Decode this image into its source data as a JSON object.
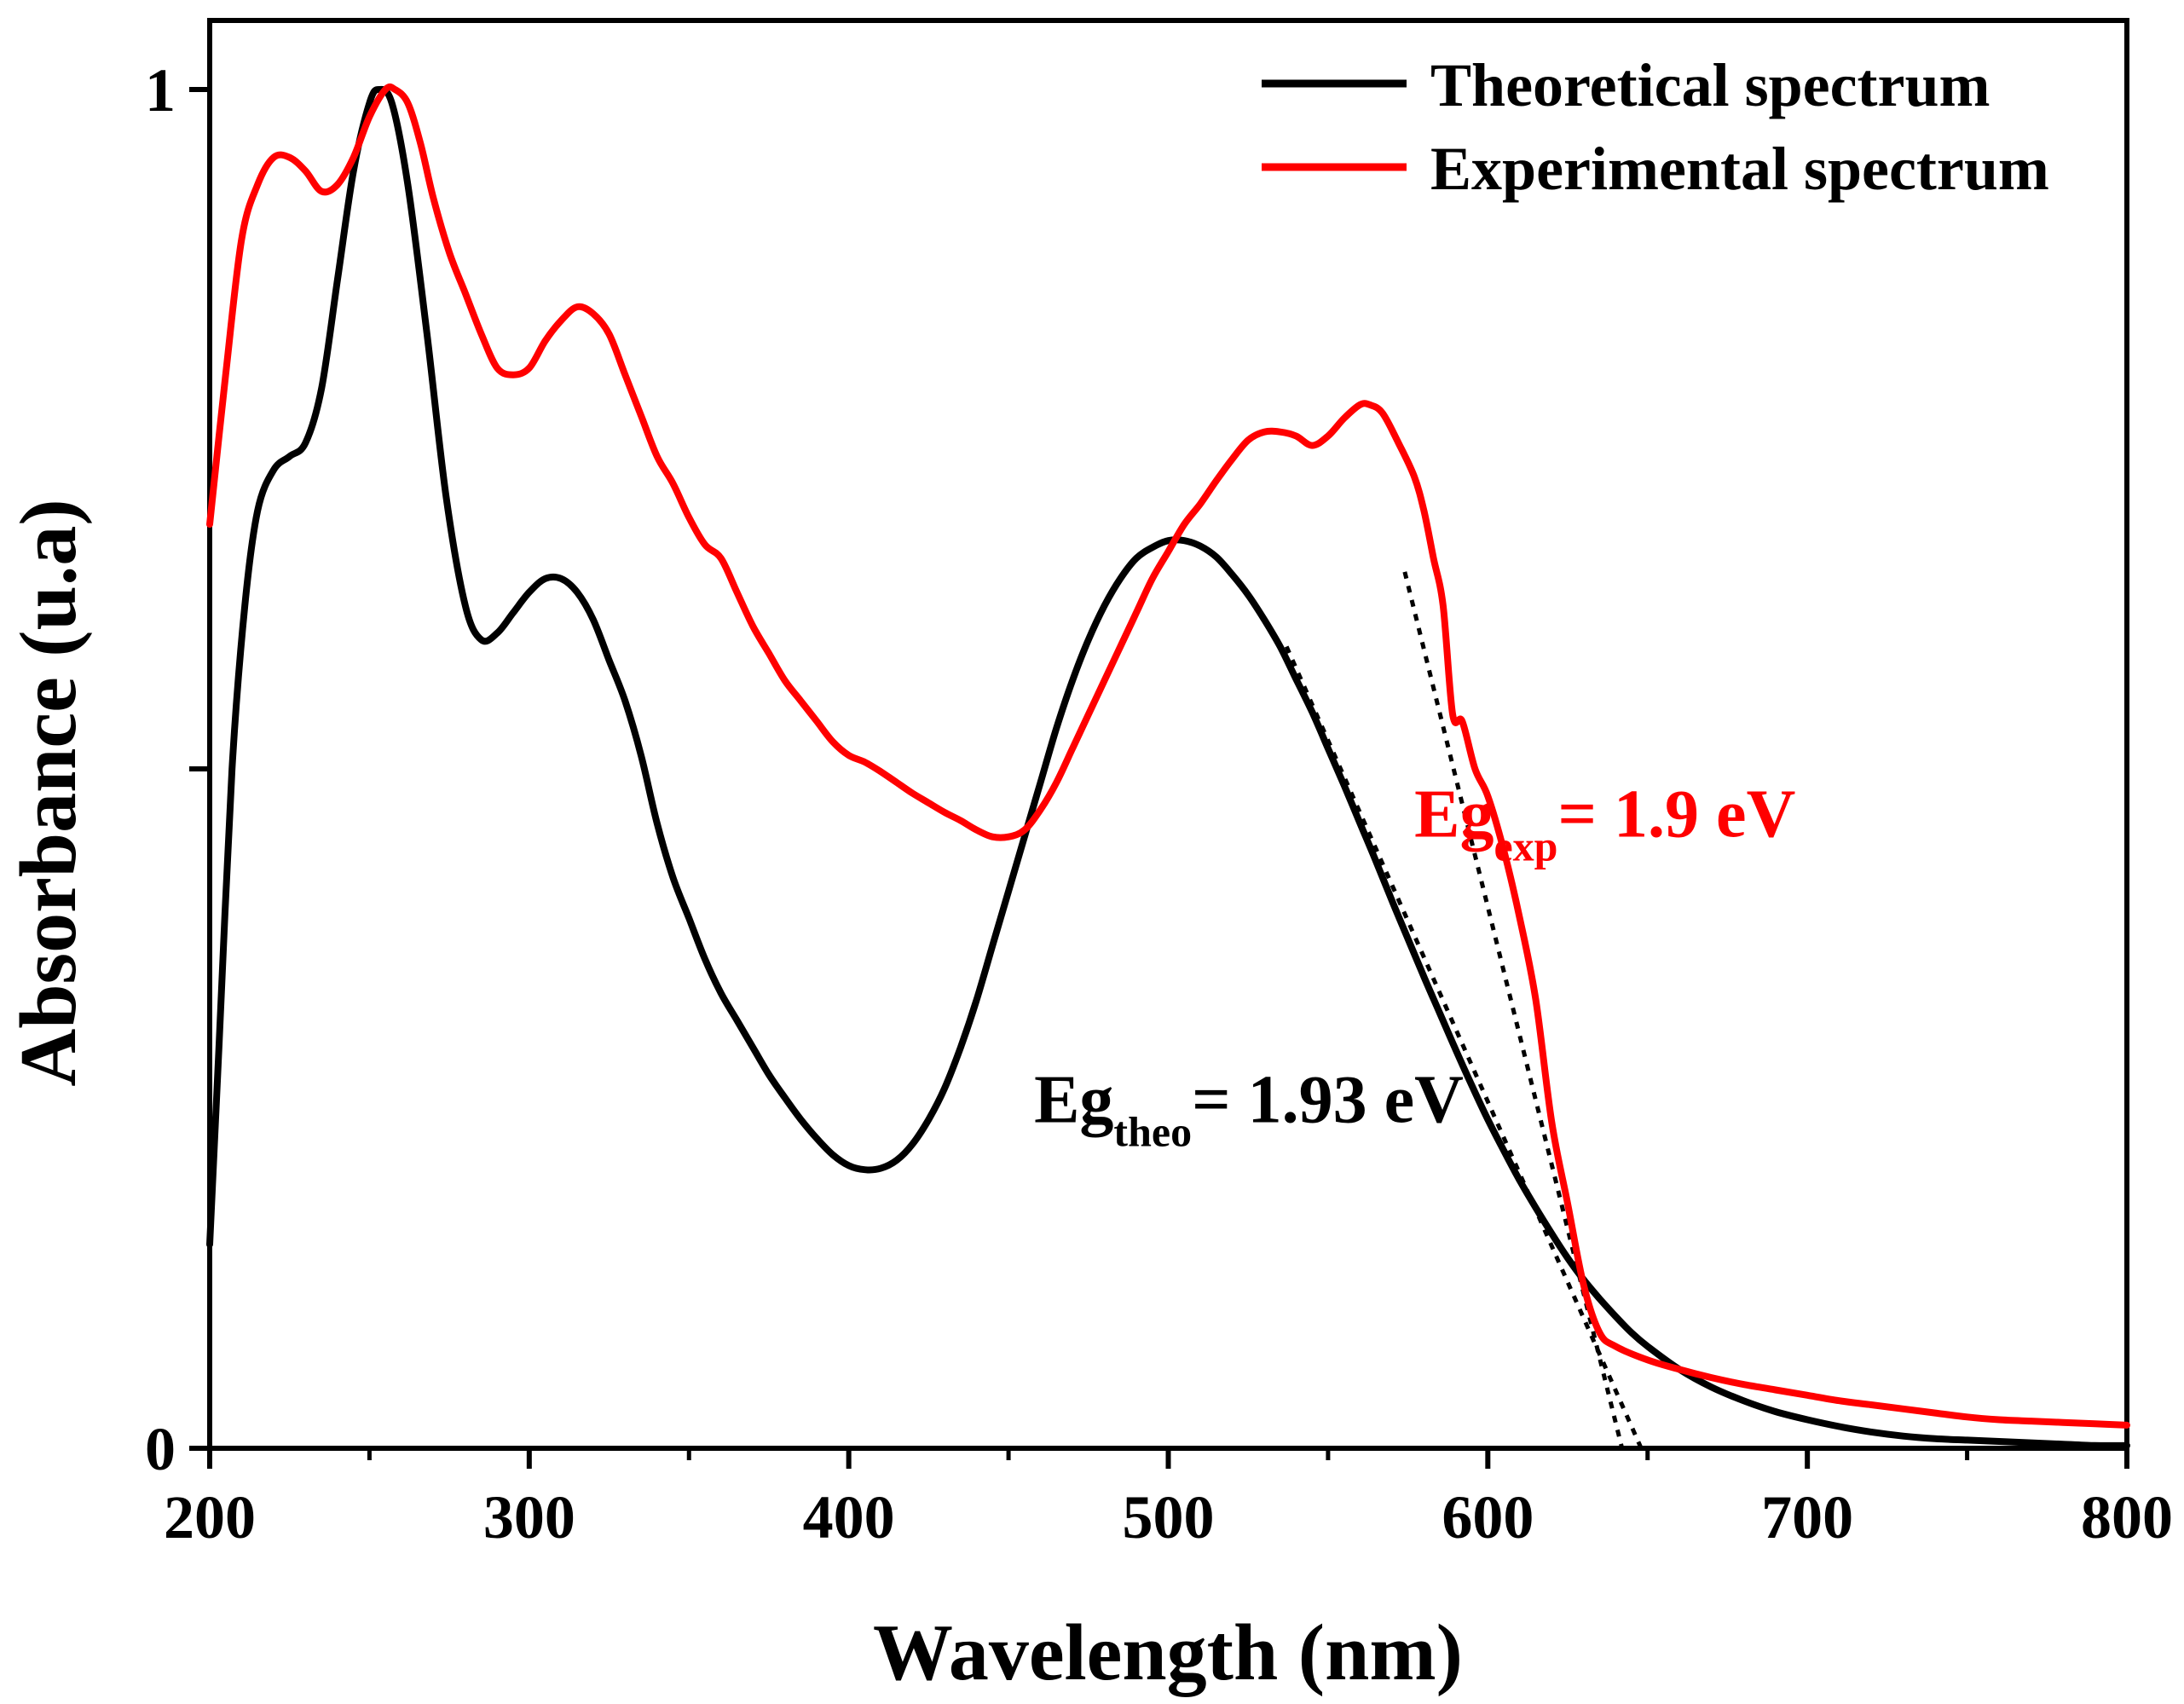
{
  "chart_data": {
    "type": "line",
    "title": "",
    "xlabel": "Wavelength (nm)",
    "ylabel": "Absorbance (u.a)",
    "xlim": [
      200,
      800
    ],
    "ylim": [
      0,
      1
    ],
    "x_ticks": [
      200,
      300,
      400,
      500,
      600,
      700,
      800
    ],
    "y_ticks": [
      0,
      0.5,
      1
    ],
    "y_tick_labels": [
      "0",
      "",
      "1"
    ],
    "grid": false,
    "legend_position": "top-right",
    "series": [
      {
        "name": "Theoretical spectrum",
        "color": "#000000",
        "points": [
          [
            200,
            0.15
          ],
          [
            203,
            0.3
          ],
          [
            207,
            0.5
          ],
          [
            211,
            0.62
          ],
          [
            215,
            0.69
          ],
          [
            220,
            0.72
          ],
          [
            225,
            0.73
          ],
          [
            230,
            0.74
          ],
          [
            235,
            0.78
          ],
          [
            240,
            0.86
          ],
          [
            245,
            0.94
          ],
          [
            250,
            0.99
          ],
          [
            253,
            1.0
          ],
          [
            257,
            0.99
          ],
          [
            262,
            0.93
          ],
          [
            268,
            0.82
          ],
          [
            274,
            0.7
          ],
          [
            280,
            0.62
          ],
          [
            285,
            0.595
          ],
          [
            290,
            0.6
          ],
          [
            295,
            0.615
          ],
          [
            300,
            0.63
          ],
          [
            305,
            0.64
          ],
          [
            310,
            0.64
          ],
          [
            315,
            0.63
          ],
          [
            320,
            0.61
          ],
          [
            325,
            0.58
          ],
          [
            330,
            0.55
          ],
          [
            335,
            0.51
          ],
          [
            340,
            0.46
          ],
          [
            345,
            0.42
          ],
          [
            350,
            0.39
          ],
          [
            355,
            0.36
          ],
          [
            360,
            0.335
          ],
          [
            365,
            0.315
          ],
          [
            370,
            0.295
          ],
          [
            375,
            0.275
          ],
          [
            380,
            0.258
          ],
          [
            385,
            0.242
          ],
          [
            390,
            0.228
          ],
          [
            395,
            0.216
          ],
          [
            400,
            0.208
          ],
          [
            405,
            0.205
          ],
          [
            410,
            0.206
          ],
          [
            415,
            0.212
          ],
          [
            420,
            0.224
          ],
          [
            425,
            0.242
          ],
          [
            430,
            0.265
          ],
          [
            435,
            0.295
          ],
          [
            440,
            0.33
          ],
          [
            445,
            0.37
          ],
          [
            450,
            0.41
          ],
          [
            455,
            0.45
          ],
          [
            460,
            0.49
          ],
          [
            465,
            0.53
          ],
          [
            470,
            0.565
          ],
          [
            475,
            0.595
          ],
          [
            480,
            0.62
          ],
          [
            485,
            0.64
          ],
          [
            490,
            0.655
          ],
          [
            495,
            0.663
          ],
          [
            500,
            0.668
          ],
          [
            505,
            0.668
          ],
          [
            510,
            0.664
          ],
          [
            515,
            0.656
          ],
          [
            520,
            0.643
          ],
          [
            525,
            0.628
          ],
          [
            530,
            0.61
          ],
          [
            535,
            0.59
          ],
          [
            540,
            0.566
          ],
          [
            545,
            0.542
          ],
          [
            550,
            0.515
          ],
          [
            555,
            0.488
          ],
          [
            560,
            0.46
          ],
          [
            565,
            0.432
          ],
          [
            570,
            0.403
          ],
          [
            575,
            0.375
          ],
          [
            580,
            0.347
          ],
          [
            585,
            0.32
          ],
          [
            590,
            0.293
          ],
          [
            595,
            0.267
          ],
          [
            600,
            0.242
          ],
          [
            605,
            0.219
          ],
          [
            610,
            0.197
          ],
          [
            615,
            0.177
          ],
          [
            620,
            0.158
          ],
          [
            625,
            0.14
          ],
          [
            630,
            0.124
          ],
          [
            635,
            0.11
          ],
          [
            640,
            0.097
          ],
          [
            645,
            0.085
          ],
          [
            650,
            0.075
          ],
          [
            660,
            0.058
          ],
          [
            670,
            0.045
          ],
          [
            680,
            0.035
          ],
          [
            690,
            0.027
          ],
          [
            700,
            0.021
          ],
          [
            710,
            0.016
          ],
          [
            720,
            0.012
          ],
          [
            730,
            0.009
          ],
          [
            740,
            0.007
          ],
          [
            750,
            0.006
          ],
          [
            760,
            0.005
          ],
          [
            770,
            0.004
          ],
          [
            780,
            0.003
          ],
          [
            790,
            0.002
          ],
          [
            800,
            0.002
          ]
        ]
      },
      {
        "name": "Experimental spectrum",
        "color": "#ff0000",
        "points": [
          [
            200,
            0.68
          ],
          [
            205,
            0.79
          ],
          [
            210,
            0.89
          ],
          [
            215,
            0.93
          ],
          [
            220,
            0.95
          ],
          [
            225,
            0.95
          ],
          [
            230,
            0.94
          ],
          [
            235,
            0.925
          ],
          [
            240,
            0.93
          ],
          [
            245,
            0.95
          ],
          [
            250,
            0.98
          ],
          [
            255,
            1.0
          ],
          [
            258,
            1.0
          ],
          [
            262,
            0.99
          ],
          [
            266,
            0.96
          ],
          [
            270,
            0.92
          ],
          [
            275,
            0.88
          ],
          [
            280,
            0.85
          ],
          [
            285,
            0.82
          ],
          [
            290,
            0.795
          ],
          [
            295,
            0.79
          ],
          [
            300,
            0.795
          ],
          [
            305,
            0.815
          ],
          [
            310,
            0.83
          ],
          [
            315,
            0.84
          ],
          [
            320,
            0.835
          ],
          [
            325,
            0.82
          ],
          [
            330,
            0.79
          ],
          [
            335,
            0.76
          ],
          [
            340,
            0.73
          ],
          [
            345,
            0.71
          ],
          [
            350,
            0.685
          ],
          [
            355,
            0.665
          ],
          [
            360,
            0.655
          ],
          [
            365,
            0.63
          ],
          [
            370,
            0.605
          ],
          [
            375,
            0.585
          ],
          [
            380,
            0.565
          ],
          [
            385,
            0.55
          ],
          [
            390,
            0.535
          ],
          [
            395,
            0.52
          ],
          [
            400,
            0.51
          ],
          [
            405,
            0.505
          ],
          [
            410,
            0.498
          ],
          [
            415,
            0.49
          ],
          [
            420,
            0.482
          ],
          [
            425,
            0.475
          ],
          [
            430,
            0.468
          ],
          [
            435,
            0.462
          ],
          [
            440,
            0.455
          ],
          [
            445,
            0.45
          ],
          [
            450,
            0.45
          ],
          [
            455,
            0.455
          ],
          [
            460,
            0.47
          ],
          [
            465,
            0.49
          ],
          [
            470,
            0.515
          ],
          [
            475,
            0.54
          ],
          [
            480,
            0.565
          ],
          [
            485,
            0.59
          ],
          [
            490,
            0.615
          ],
          [
            495,
            0.64
          ],
          [
            500,
            0.66
          ],
          [
            505,
            0.68
          ],
          [
            510,
            0.695
          ],
          [
            515,
            0.712
          ],
          [
            520,
            0.728
          ],
          [
            525,
            0.742
          ],
          [
            530,
            0.748
          ],
          [
            535,
            0.748
          ],
          [
            540,
            0.745
          ],
          [
            545,
            0.738
          ],
          [
            550,
            0.745
          ],
          [
            555,
            0.758
          ],
          [
            560,
            0.768
          ],
          [
            563,
            0.768
          ],
          [
            567,
            0.762
          ],
          [
            572,
            0.74
          ],
          [
            577,
            0.715
          ],
          [
            580,
            0.69
          ],
          [
            583,
            0.655
          ],
          [
            586,
            0.62
          ],
          [
            589,
            0.54
          ],
          [
            592,
            0.535
          ],
          [
            596,
            0.5
          ],
          [
            600,
            0.48
          ],
          [
            605,
            0.44
          ],
          [
            610,
            0.39
          ],
          [
            615,
            0.33
          ],
          [
            620,
            0.24
          ],
          [
            625,
            0.18
          ],
          [
            630,
            0.12
          ],
          [
            635,
            0.085
          ],
          [
            640,
            0.075
          ],
          [
            650,
            0.065
          ],
          [
            660,
            0.058
          ],
          [
            670,
            0.052
          ],
          [
            680,
            0.047
          ],
          [
            690,
            0.043
          ],
          [
            700,
            0.039
          ],
          [
            710,
            0.035
          ],
          [
            720,
            0.032
          ],
          [
            730,
            0.029
          ],
          [
            740,
            0.026
          ],
          [
            750,
            0.023
          ],
          [
            760,
            0.021
          ],
          [
            770,
            0.02
          ],
          [
            780,
            0.019
          ],
          [
            790,
            0.018
          ],
          [
            800,
            0.017
          ]
        ]
      }
    ],
    "tangent_lines": [
      {
        "name": "theoretical-tangent",
        "color": "#000000",
        "from": [
          537,
          0.59
        ],
        "to": [
          648,
          0.0
        ]
      },
      {
        "name": "experimental-tangent",
        "color": "#000000",
        "from": [
          574,
          0.645
        ],
        "to": [
          642,
          0.0
        ]
      }
    ],
    "annotations": [
      {
        "name": "eg-theo",
        "main": "Eg",
        "sub": "theo",
        "rest": "= 1.93 eV",
        "color": "#000000",
        "at": [
          458,
          0.24
        ]
      },
      {
        "name": "eg-exp",
        "main": "Eg",
        "sub": "exp",
        "rest": "= 1.9 eV",
        "color": "#ff0000",
        "at": [
          577,
          0.45
        ]
      }
    ]
  }
}
